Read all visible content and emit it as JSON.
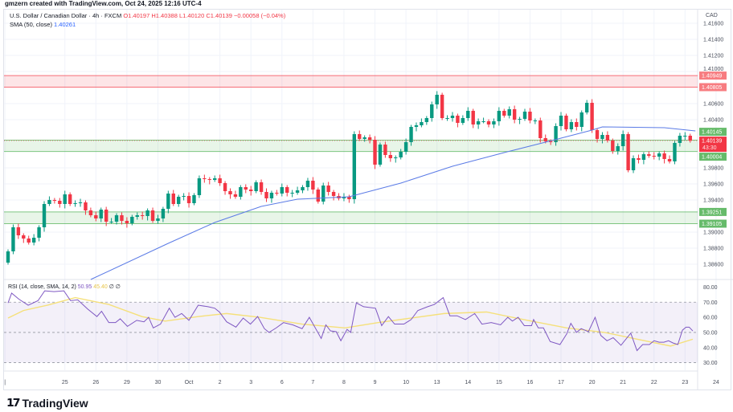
{
  "credit": "gmzern created with TradingView.com, Oct 24, 2025 12:16 UTC-4",
  "legend": {
    "symbol": "U.S. Dollar / Canadian Dollar · 4h · FXCM",
    "open": "O1.40197",
    "high": "H1.40388",
    "low": "L1.40120",
    "close": "C1.40139",
    "change": "−0.00058 (−0.04%)",
    "sma_label": "SMA (50, close)",
    "sma_value": "1.40261"
  },
  "rsi_legend": {
    "label": "RSI (14, close, SMA, 14, 2)",
    "rsi_value": "50.95",
    "ma_value": "45.40",
    "extra": "∅ ∅"
  },
  "currency": "CAD",
  "logo_text": "TradingView",
  "colors": {
    "up": "#089981",
    "down": "#f23645",
    "sma": "#5b7be6",
    "rsi": "#7e57c2",
    "rsi_ma": "#f5e07a",
    "zone_red": "#f23645",
    "zone_green": "#4caf50"
  },
  "chart_data": {
    "type": "candlestick",
    "title": "U.S. Dollar / Canadian Dollar · 4h · FXCM",
    "price_range": [
      1.3842,
      1.4177
    ],
    "price_ticks": [
      "1.41600",
      "1.41400",
      "1.41200",
      "1.41000",
      "1.40600",
      "1.40400",
      "1.39800",
      "1.39600",
      "1.39400",
      "1.39000",
      "1.38800",
      "1.38600"
    ],
    "first_open": 1.3862,
    "closes": [
      1.3876,
      1.3906,
      1.3896,
      1.3892,
      1.3887,
      1.3893,
      1.3906,
      1.3935,
      1.394,
      1.3939,
      1.3935,
      1.3947,
      1.3935,
      1.3936,
      1.3937,
      1.3927,
      1.3921,
      1.3917,
      1.3928,
      1.3913,
      1.3913,
      1.3921,
      1.3914,
      1.3911,
      1.3919,
      1.3921,
      1.392,
      1.3927,
      1.3914,
      1.3917,
      1.3929,
      1.3948,
      1.3935,
      1.3944,
      1.3945,
      1.3936,
      1.3946,
      1.3967,
      1.3966,
      1.3965,
      1.3967,
      1.3961,
      1.3951,
      1.3947,
      1.3944,
      1.3956,
      1.3953,
      1.3951,
      1.3962,
      1.395,
      1.3942,
      1.3949,
      1.3948,
      1.3956,
      1.3949,
      1.3949,
      1.3952,
      1.3956,
      1.3964,
      1.3953,
      1.3938,
      1.3958,
      1.395,
      1.3945,
      1.3942,
      1.3944,
      1.3941,
      1.4022,
      1.4016,
      1.4018,
      1.4015,
      1.3984,
      1.4009,
      1.3996,
      1.3992,
      1.3993,
      1.4,
      1.4012,
      1.4031,
      1.4033,
      1.4037,
      1.4042,
      1.4059,
      1.4071,
      1.4042,
      1.4042,
      1.4045,
      1.4036,
      1.4042,
      1.4051,
      1.4034,
      1.4038,
      1.4038,
      1.4034,
      1.4038,
      1.4051,
      1.4045,
      1.4053,
      1.404,
      1.4041,
      1.405,
      1.4039,
      1.4039,
      1.4017,
      1.4013,
      1.4012,
      1.4032,
      1.4045,
      1.4028,
      1.4037,
      1.4031,
      1.4049,
      1.4061,
      1.4027,
      1.4016,
      1.4021,
      1.4014,
      1.4001,
      1.4007,
      1.4022,
      1.3977,
      1.3992,
      1.399,
      1.3997,
      1.3995,
      1.3994,
      1.3998,
      1.3991,
      1.3988,
      1.4011,
      1.402,
      1.402,
      1.40139
    ],
    "sma50": [
      [
        16,
        1.3841
      ],
      [
        31,
        1.3886
      ],
      [
        40,
        1.3912
      ],
      [
        49,
        1.3932
      ],
      [
        56,
        1.3941
      ],
      [
        66,
        1.3944
      ],
      [
        76,
        1.3961
      ],
      [
        86,
        1.3982
      ],
      [
        96,
        1.3999
      ],
      [
        104,
        1.4012
      ],
      [
        113,
        1.4027
      ],
      [
        115,
        1.4031
      ],
      [
        127,
        1.403
      ],
      [
        133,
        1.4026
      ]
    ],
    "zones": [
      {
        "color": "red",
        "top": 1.40949,
        "bottom": 1.40805,
        "top_label": "1.40949",
        "bottom_label": "1.40805"
      },
      {
        "color": "green",
        "top": 1.40145,
        "bottom": 1.40004,
        "top_label": "1.40145",
        "bottom_label": "1.40004"
      },
      {
        "color": "green",
        "top": 1.39251,
        "bottom": 1.39105,
        "top_label": "1.39251",
        "bottom_label": "1.39105"
      }
    ],
    "last_price": {
      "value": 1.40139,
      "label": "1.40139",
      "countdown": "43:30"
    },
    "rsi": {
      "range": [
        25,
        85
      ],
      "levels": [
        70,
        50,
        30
      ],
      "ticks": [
        "80.00",
        "70.00",
        "60.00",
        "50.00",
        "40.00",
        "30.00"
      ],
      "values": [
        [
          0,
          69.5
        ],
        [
          0.7,
          76
        ],
        [
          2.1,
          72
        ],
        [
          3.9,
          68
        ],
        [
          5.8,
          71
        ],
        [
          7.1,
          77.5
        ],
        [
          8.9,
          77
        ],
        [
          10.8,
          77.5
        ],
        [
          12.1,
          71
        ],
        [
          13.5,
          71.5
        ],
        [
          15.4,
          65.5
        ],
        [
          17.2,
          60.5
        ],
        [
          18.1,
          64
        ],
        [
          19.5,
          56.5
        ],
        [
          20.8,
          56.5
        ],
        [
          21.7,
          59
        ],
        [
          23.1,
          54
        ],
        [
          24.9,
          58
        ],
        [
          26.3,
          57
        ],
        [
          27.2,
          60
        ],
        [
          28.1,
          53
        ],
        [
          29.5,
          55.5
        ],
        [
          31.2,
          66
        ],
        [
          32.3,
          60
        ],
        [
          33.6,
          62.5
        ],
        [
          35,
          58
        ],
        [
          36.8,
          68
        ],
        [
          38.7,
          67
        ],
        [
          40,
          66
        ],
        [
          40.9,
          63.5
        ],
        [
          42.3,
          57
        ],
        [
          44.1,
          53.5
        ],
        [
          45.5,
          59.5
        ],
        [
          46.9,
          55.5
        ],
        [
          48.3,
          60.5
        ],
        [
          49.6,
          52.5
        ],
        [
          50.5,
          50
        ],
        [
          51.9,
          53
        ],
        [
          53.3,
          56.5
        ],
        [
          55.1,
          55
        ],
        [
          56.9,
          52.5
        ],
        [
          58.3,
          60
        ],
        [
          60.6,
          46
        ],
        [
          61.5,
          55
        ],
        [
          62.4,
          51
        ],
        [
          63.5,
          50.5
        ],
        [
          64.4,
          44.5
        ],
        [
          65.6,
          52
        ],
        [
          66.3,
          50
        ],
        [
          67.4,
          69.5
        ],
        [
          68.8,
          67
        ],
        [
          71.1,
          66
        ],
        [
          72.3,
          54.5
        ],
        [
          73.6,
          60.5
        ],
        [
          74.8,
          55.5
        ],
        [
          76.6,
          55.5
        ],
        [
          78,
          58.5
        ],
        [
          79.3,
          64.5
        ],
        [
          81.2,
          67
        ],
        [
          82.5,
          68.5
        ],
        [
          84.2,
          73
        ],
        [
          85.5,
          61
        ],
        [
          86.9,
          61
        ],
        [
          88.5,
          58.5
        ],
        [
          90.3,
          62.5
        ],
        [
          91.7,
          55.5
        ],
        [
          93.5,
          56.5
        ],
        [
          95.3,
          55
        ],
        [
          96.7,
          60
        ],
        [
          97.6,
          57.5
        ],
        [
          98.7,
          60
        ],
        [
          99.9,
          54.5
        ],
        [
          101.3,
          54.5
        ],
        [
          101.7,
          58.5
        ],
        [
          102.6,
          53
        ],
        [
          103.6,
          53
        ],
        [
          104.9,
          44
        ],
        [
          106.8,
          42
        ],
        [
          108.1,
          49
        ],
        [
          108.9,
          56
        ],
        [
          110,
          50
        ],
        [
          110.9,
          52.5
        ],
        [
          112.3,
          50.5
        ],
        [
          113.6,
          60
        ],
        [
          114.7,
          48
        ],
        [
          115.9,
          44.5
        ],
        [
          117.1,
          46.5
        ],
        [
          118.6,
          41.5
        ],
        [
          120.5,
          49.5
        ],
        [
          121.7,
          38
        ],
        [
          122.8,
          42
        ],
        [
          124.1,
          42
        ],
        [
          125,
          44.5
        ],
        [
          126,
          43.5
        ],
        [
          126.9,
          43.5
        ],
        [
          127.8,
          44.5
        ],
        [
          128.7,
          43
        ],
        [
          129.6,
          42
        ],
        [
          130.5,
          51.5
        ],
        [
          131.2,
          53.5
        ],
        [
          131.8,
          53.5
        ],
        [
          132.5,
          51
        ]
      ],
      "ma": [
        [
          0,
          59.5
        ],
        [
          3,
          64.5
        ],
        [
          7.6,
          68
        ],
        [
          13,
          73
        ],
        [
          19.5,
          68.5
        ],
        [
          25.9,
          60.5
        ],
        [
          30.4,
          57.5
        ],
        [
          36.8,
          60.5
        ],
        [
          42.3,
          62.5
        ],
        [
          48.7,
          60
        ],
        [
          56.9,
          55.5
        ],
        [
          65.2,
          53
        ],
        [
          71.6,
          56.5
        ],
        [
          78,
          59.5
        ],
        [
          84.4,
          62.5
        ],
        [
          92.6,
          63.5
        ],
        [
          99,
          59
        ],
        [
          108.1,
          53
        ],
        [
          115.4,
          50
        ],
        [
          121.8,
          45.5
        ],
        [
          128.2,
          41
        ],
        [
          132.5,
          45.5
        ]
      ]
    },
    "x_labels": [
      "",
      "25",
      "26",
      "29",
      "30",
      "Oct",
      "2",
      "3",
      "6",
      "7",
      "8",
      "9",
      "10",
      "13",
      "14",
      "15",
      "16",
      "17",
      "20",
      "21",
      "22",
      "23",
      "24"
    ]
  }
}
